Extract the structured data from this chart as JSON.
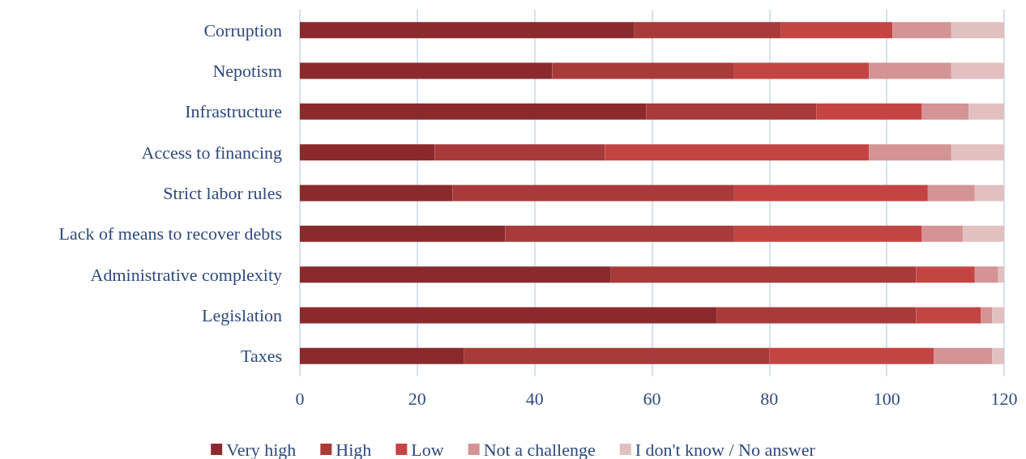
{
  "chart_data": {
    "type": "bar",
    "orientation": "horizontal",
    "stacked": true,
    "categories": [
      "Corruption",
      "Nepotism",
      "Infrastructure",
      "Access to financing",
      "Strict labor rules",
      "Lack of means to recover debts",
      "Administrative complexity",
      "Legislation",
      "Taxes"
    ],
    "series": [
      {
        "name": "Very high",
        "color": "#8b2a2c",
        "values": [
          57,
          43,
          59,
          23,
          26,
          35,
          53,
          71,
          28
        ]
      },
      {
        "name": "High",
        "color": "#a83a3a",
        "values": [
          25,
          31,
          29,
          29,
          48,
          39,
          52,
          34,
          52
        ]
      },
      {
        "name": "Low",
        "color": "#c44444",
        "values": [
          19,
          23,
          18,
          45,
          33,
          32,
          10,
          11,
          28
        ]
      },
      {
        "name": "Not a challenge",
        "color": "#d49394",
        "values": [
          10,
          14,
          8,
          14,
          8,
          7,
          4,
          2,
          10
        ]
      },
      {
        "name": "I don't know / No answer",
        "color": "#e3c0c0",
        "values": [
          9,
          9,
          6,
          9,
          5,
          7,
          1,
          2,
          2
        ]
      }
    ],
    "xlim": [
      0,
      120
    ],
    "xticks": [
      0,
      20,
      40,
      60,
      80,
      100,
      120
    ],
    "grid": "x",
    "legend": "bottom"
  }
}
